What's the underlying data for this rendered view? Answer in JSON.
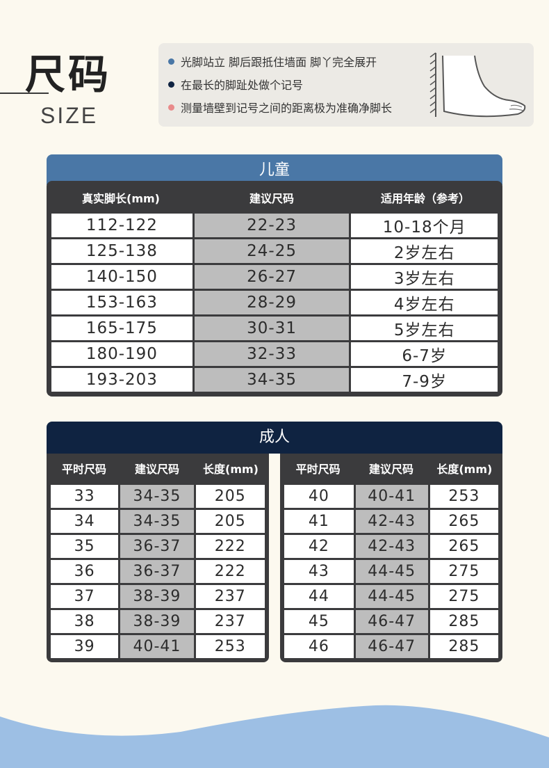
{
  "header": {
    "title_cn": "尺码",
    "title_en": "SIZE"
  },
  "notes": [
    {
      "text": "光脚站立 脚后跟抵住墙面 脚丫完全展开",
      "color": "#4a77a6"
    },
    {
      "text": "在最长的脚趾处做个记号",
      "color": "#0f2341"
    },
    {
      "text": "测量墙壁到记号之间的距离极为准确净脚长",
      "color": "#e98b8b"
    }
  ],
  "kids": {
    "title": "儿童",
    "columns": [
      "真实脚长(mm)",
      "建议尺码",
      "适用年龄（参考）"
    ],
    "rows": [
      [
        "112-122",
        "22-23",
        "10-18个月"
      ],
      [
        "125-138",
        "24-25",
        "2岁左右"
      ],
      [
        "140-150",
        "26-27",
        "3岁左右"
      ],
      [
        "153-163",
        "28-29",
        "4岁左右"
      ],
      [
        "165-175",
        "30-31",
        "5岁左右"
      ],
      [
        "180-190",
        "32-33",
        "6-7岁"
      ],
      [
        "193-203",
        "34-35",
        "7-9岁"
      ]
    ]
  },
  "adult": {
    "title": "成人",
    "columns": [
      "平时尺码",
      "建议尺码",
      "长度(mm)"
    ],
    "left_rows": [
      [
        "33",
        "34-35",
        "205"
      ],
      [
        "34",
        "34-35",
        "205"
      ],
      [
        "35",
        "36-37",
        "222"
      ],
      [
        "36",
        "36-37",
        "222"
      ],
      [
        "37",
        "38-39",
        "237"
      ],
      [
        "38",
        "38-39",
        "237"
      ],
      [
        "39",
        "40-41",
        "253"
      ]
    ],
    "right_rows": [
      [
        "40",
        "40-41",
        "253"
      ],
      [
        "41",
        "42-43",
        "265"
      ],
      [
        "42",
        "42-43",
        "265"
      ],
      [
        "43",
        "44-45",
        "275"
      ],
      [
        "44",
        "44-45",
        "275"
      ],
      [
        "45",
        "46-47",
        "285"
      ],
      [
        "46",
        "46-47",
        "285"
      ]
    ]
  },
  "colors": {
    "kids_header": "#4a77a6",
    "adult_header": "#0f2341",
    "wave": "#9dbfe4"
  }
}
